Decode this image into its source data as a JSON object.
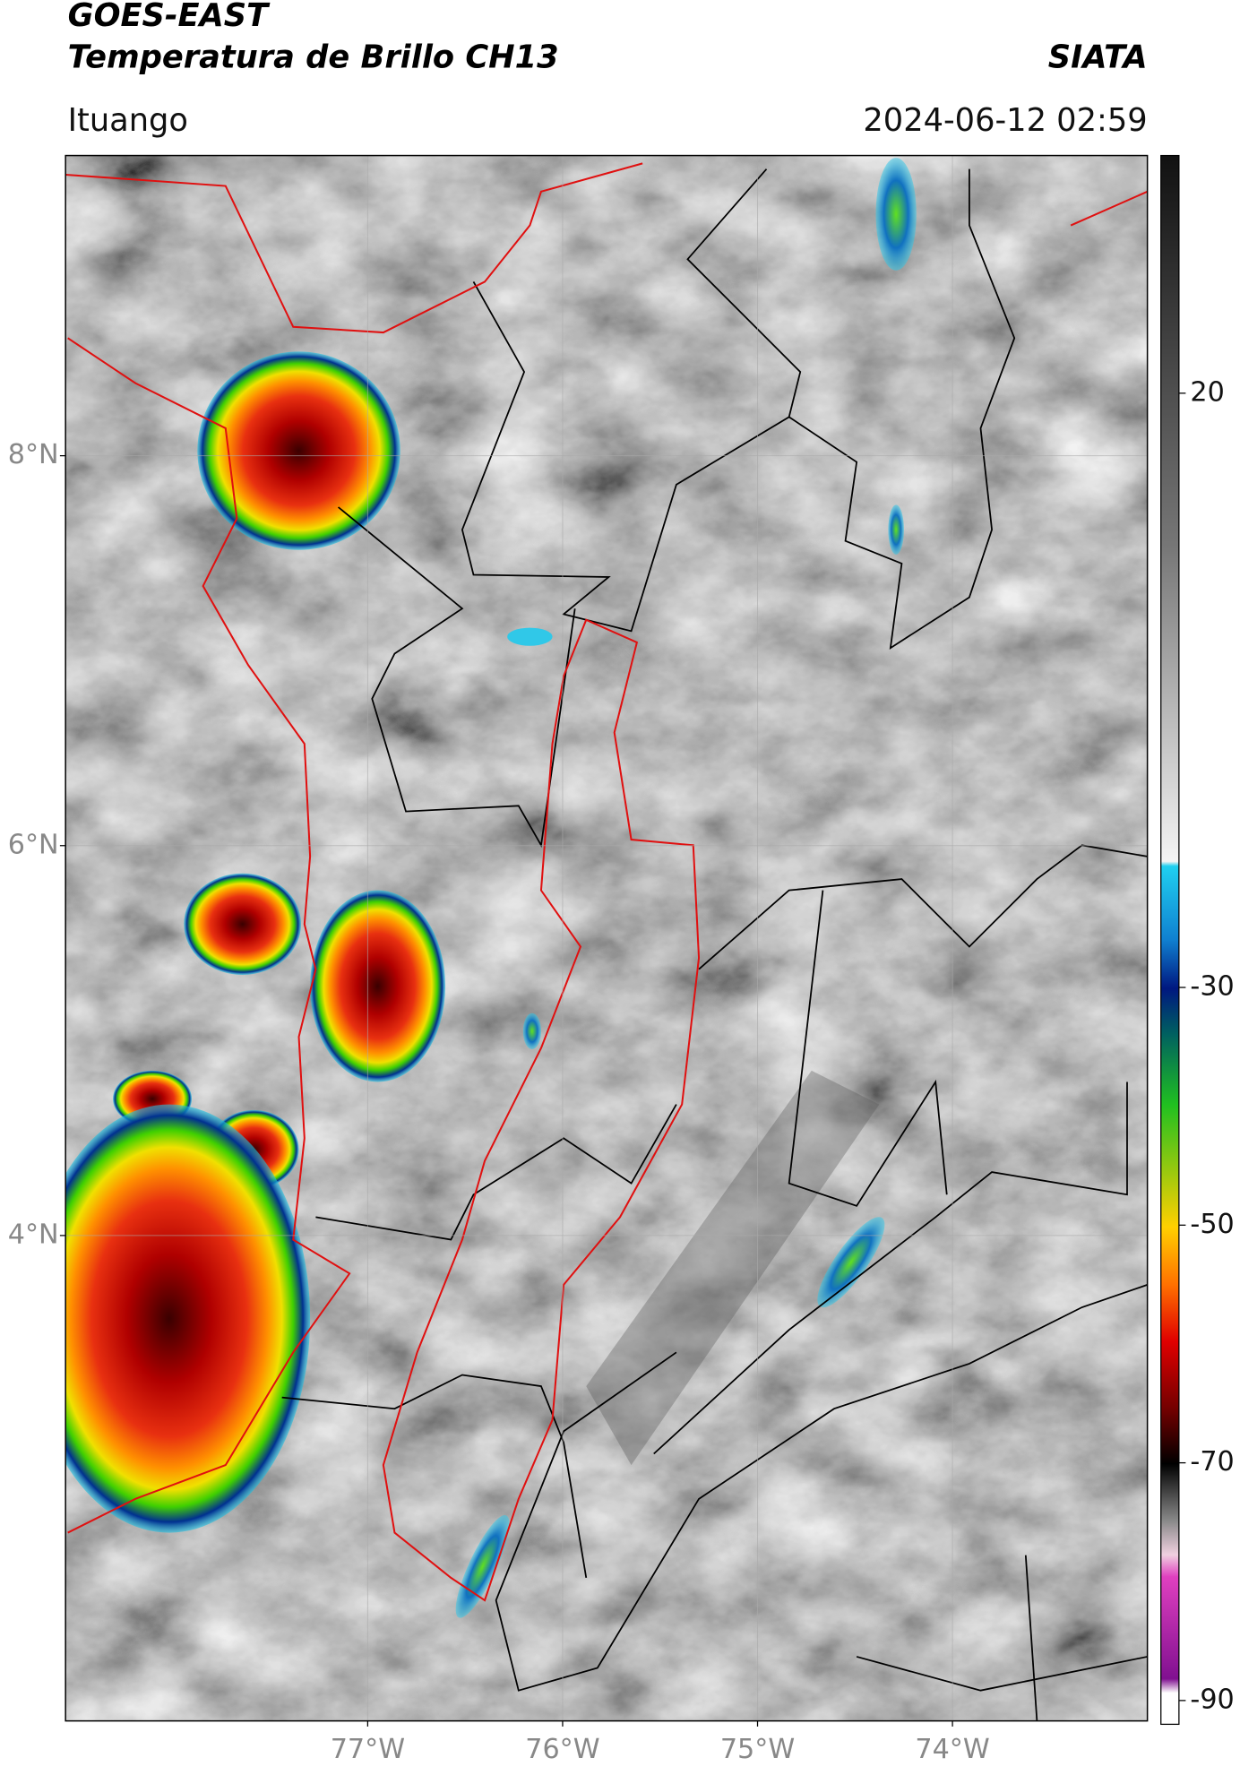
{
  "header": {
    "title": "GOES-EAST",
    "subtitle": "Temperatura de Brillo CH13",
    "organization": "SIATA",
    "location": "Ituango",
    "datetime": "2024-06-12 02:59"
  },
  "map": {
    "xlim": [
      -78.55,
      -73.0
    ],
    "ylim": [
      1.51,
      9.54
    ],
    "xticks": [
      {
        "value": -77,
        "label": "77°W"
      },
      {
        "value": -76,
        "label": "76°W"
      },
      {
        "value": -75,
        "label": "75°W"
      },
      {
        "value": -74,
        "label": "74°W"
      }
    ],
    "yticks": [
      {
        "value": 8,
        "label": "8°N"
      },
      {
        "value": 6,
        "label": "6°N"
      },
      {
        "value": 4,
        "label": "4°N"
      }
    ],
    "grid": true
  },
  "colorbar": {
    "lim": [
      -92,
      40
    ],
    "ticks": [
      20,
      -30,
      -50,
      -70,
      -90
    ]
  }
}
